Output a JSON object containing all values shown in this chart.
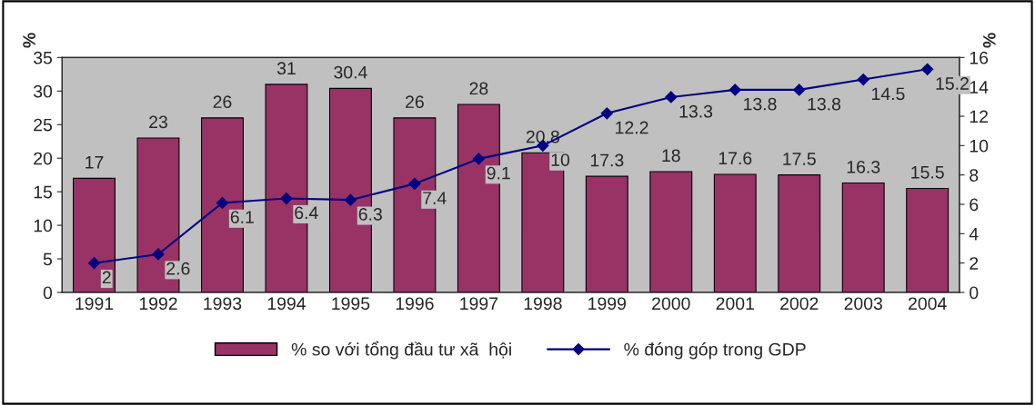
{
  "chart_data": {
    "type": "bar",
    "ylabel": "%",
    "y2label": "%",
    "categories": [
      "1991",
      "1992",
      "1993",
      "1994",
      "1995",
      "1996",
      "1997",
      "1998",
      "1999",
      "2000",
      "2001",
      "2002",
      "2003",
      "2004"
    ],
    "series": [
      {
        "name": "% so với tổng đầu tư xã  hội",
        "color": "#993366",
        "values": [
          17,
          23,
          26,
          31,
          30.4,
          26,
          28,
          20.8,
          17.3,
          18,
          17.6,
          17.5,
          16.3,
          15.5
        ]
      },
      {
        "name": "% đóng góp trong GDP",
        "type": "line",
        "axis": "y2",
        "color": "#000080",
        "marker": "diamond",
        "values": [
          2,
          2.6,
          6.1,
          6.4,
          6.3,
          7.4,
          9.1,
          10,
          12.2,
          13.3,
          13.8,
          13.8,
          14.5,
          15.2
        ]
      }
    ],
    "ylim": [
      0,
      35
    ],
    "yticks": [
      0,
      5,
      10,
      15,
      20,
      25,
      30,
      35
    ],
    "y2lim": [
      0,
      16
    ],
    "y2ticks": [
      0,
      2,
      4,
      6,
      8,
      10,
      12,
      14,
      16
    ],
    "data_labels": true,
    "grid": false,
    "legend": "bottom"
  }
}
